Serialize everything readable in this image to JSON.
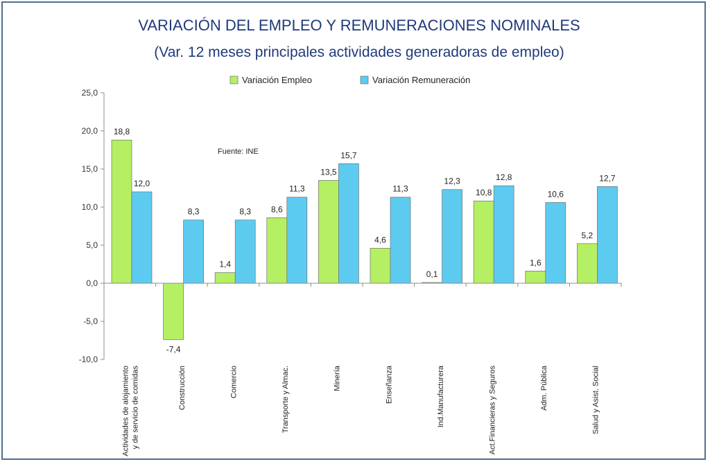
{
  "chart_data": {
    "type": "bar",
    "title": "VARIACIÓN DEL EMPLEO Y REMUNERACIONES NOMINALES",
    "subtitle": "(Var. 12 meses principales actividades generadoras de empleo)",
    "annotation": "Fuente: INE",
    "categories": [
      [
        "Actividades de alojamiento",
        "y de servicio de comidas"
      ],
      [
        "Construcción"
      ],
      [
        "Comercio"
      ],
      [
        "Transporte y Almac."
      ],
      [
        "Minería"
      ],
      [
        "Enseñanza"
      ],
      [
        "Ind.Manufacturera"
      ],
      [
        "Act.Financieras y Seguros"
      ],
      [
        "Adm. Pública"
      ],
      [
        "Salud y Asist. Social"
      ]
    ],
    "series": [
      {
        "name": "Variación Empleo",
        "color": "#b5ef63",
        "values": [
          18.8,
          -7.4,
          1.4,
          8.6,
          13.5,
          4.6,
          0.1,
          10.8,
          1.6,
          5.2
        ],
        "labels": [
          "18,8",
          "-7,4",
          "1,4",
          "8,6",
          "13,5",
          "4,6",
          "0,1",
          "10,8",
          "1,6",
          "5,2"
        ]
      },
      {
        "name": "Variación Remuneración",
        "color": "#5dcbf0",
        "values": [
          12.0,
          8.3,
          8.3,
          11.3,
          15.7,
          11.3,
          12.3,
          12.8,
          10.6,
          12.7
        ],
        "labels": [
          "12,0",
          "8,3",
          "8,3",
          "11,3",
          "15,7",
          "11,3",
          "12,3",
          "12,8",
          "10,6",
          "12,7"
        ]
      }
    ],
    "ylim": [
      -10,
      25
    ],
    "yticks": [
      25,
      20,
      15,
      10,
      5,
      0,
      -5,
      -10
    ],
    "ytick_labels": [
      "25,0",
      "20,0",
      "15,0",
      "10,0",
      "5,0",
      "0,0",
      "-5,0",
      "-10,0"
    ],
    "xlabel": "",
    "ylabel": "",
    "legend_position": "top-center",
    "grid": false,
    "colors": {
      "title": "#1f3a7a",
      "text": "#222222",
      "axis": "#8c8c8c",
      "frame": "#4f6f8f"
    }
  }
}
